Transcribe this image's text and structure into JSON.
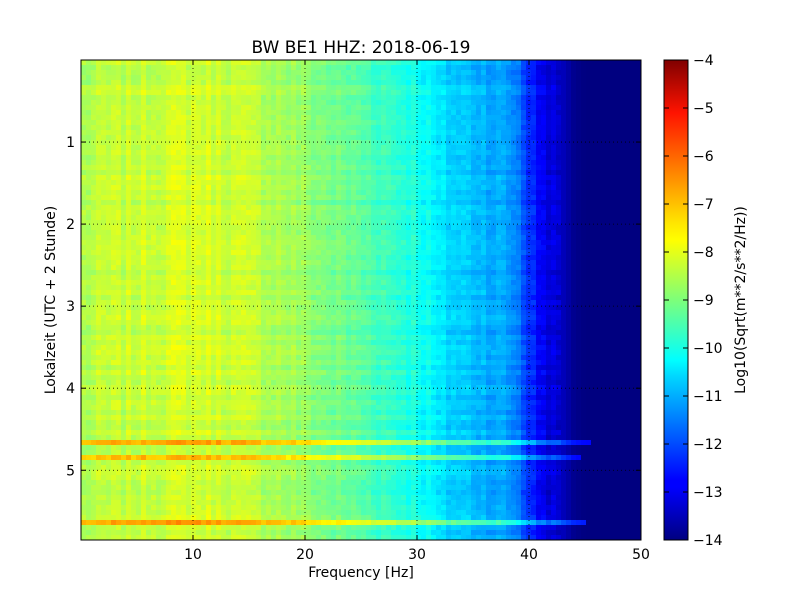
{
  "chart_data": {
    "type": "heatmap",
    "title": "BW BE1 HHZ: 2018-06-19",
    "xlabel": "Frequency [Hz]",
    "ylabel": "Lokalzeit (UTC + 2 Stunde)",
    "xlim": [
      0,
      50
    ],
    "ylim": [
      5.85,
      0
    ],
    "x_ticks": [
      10,
      20,
      30,
      40,
      50
    ],
    "x_tick_labels": [
      "10",
      "20",
      "30",
      "40",
      "50"
    ],
    "y_ticks": [
      1,
      2,
      3,
      4,
      5
    ],
    "y_tick_labels": [
      "1",
      "2",
      "3",
      "4",
      "5"
    ],
    "grid": true,
    "colormap": "jet",
    "colorbar": {
      "label": "Log10(Sqrt(m**2/s**2/Hz))",
      "min": -14,
      "max": -4,
      "ticks": [
        -4,
        -5,
        -6,
        -7,
        -8,
        -9,
        -10,
        -11,
        -12,
        -13,
        -14
      ],
      "tick_labels": [
        "−4",
        "−5",
        "−6",
        "−7",
        "−8",
        "−9",
        "−10",
        "−11",
        "−12",
        "−13",
        "−14"
      ]
    },
    "spectral_profile": {
      "frequency_hz": [
        0,
        2,
        5,
        8,
        10,
        12,
        15,
        18,
        20,
        22,
        25,
        28,
        30,
        31,
        32,
        34,
        36,
        38,
        39,
        40,
        41,
        42,
        43,
        44,
        45,
        46,
        48,
        50
      ],
      "level": [
        -8.6,
        -8.4,
        -8.3,
        -8.2,
        -8.15,
        -8.2,
        -8.35,
        -8.6,
        -8.8,
        -9.05,
        -9.35,
        -9.75,
        -10.0,
        -10.25,
        -10.55,
        -10.75,
        -10.95,
        -11.2,
        -11.5,
        -12.3,
        -12.8,
        -13.1,
        -13.4,
        -13.85,
        -14.0,
        -14.0,
        -14.0,
        -14.0
      ]
    },
    "bright_bands": [
      {
        "time": 4.66,
        "level_boost": 1.3,
        "max_frequency_hz": 45.5
      },
      {
        "time": 4.85,
        "level_boost": 1.2,
        "max_frequency_hz": 44.5
      },
      {
        "time": 5.64,
        "level_boost": 1.5,
        "max_frequency_hz": 45.0
      }
    ]
  }
}
